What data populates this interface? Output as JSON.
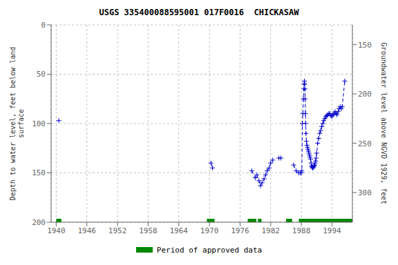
{
  "chart_data": {
    "type": "line",
    "title": "USGS 335400088595001 017F0016  CHICKASAW",
    "y_label": "Depth to water level, feet below land\nsurface",
    "y2_label": "Groundwater level above NGVD 1929, feet",
    "xlim": [
      1939,
      1998
    ],
    "xticks": [
      1940,
      1946,
      1952,
      1958,
      1964,
      1970,
      1976,
      1982,
      1988,
      1994
    ],
    "ylim": [
      200,
      0
    ],
    "yticks": [
      0,
      50,
      100,
      150,
      200
    ],
    "y2lim": [
      330,
      130
    ],
    "y2ticks": [
      150,
      200,
      250,
      300
    ],
    "grid": true,
    "legend": "bottom",
    "series": [
      {
        "color": "#0000cc",
        "line_style": "dashed",
        "marker": "plus",
        "segments": [
          {
            "x": [
              1940.5
            ],
            "values": [
              97
            ]
          },
          {
            "x": [
              1970.3,
              1970.6
            ],
            "values": [
              140,
              145
            ]
          },
          {
            "x": [
              1978.3,
              1979.0,
              1979.3,
              1979.7,
              1980.0,
              1980.3,
              1980.7,
              1981.0,
              1981.3,
              1981.7,
              1982.0,
              1982.4
            ],
            "values": [
              148,
              155,
              152,
              158,
              163,
              160,
              156,
              152,
              148,
              145,
              140,
              137
            ]
          },
          {
            "x": [
              1983.6,
              1984.0
            ],
            "values": [
              135,
              135
            ]
          },
          {
            "x": [
              1986.5,
              1987.0,
              1987.5
            ],
            "values": [
              142,
              148,
              150
            ]
          },
          {
            "x": [
              1987.8,
              1988.0,
              1988.1,
              1988.2,
              1988.3,
              1988.4,
              1988.5,
              1988.55,
              1988.6,
              1988.65,
              1988.7,
              1988.75,
              1988.8,
              1988.85,
              1988.9,
              1989.0,
              1989.1,
              1989.2,
              1989.3,
              1989.4,
              1989.5,
              1989.6,
              1989.7,
              1989.8,
              1989.9,
              1990.0,
              1990.1,
              1990.2,
              1990.3,
              1990.4,
              1990.5,
              1990.6,
              1990.7,
              1990.8,
              1990.9,
              1991.0,
              1991.2,
              1991.4,
              1991.6,
              1991.8,
              1992.0,
              1992.2,
              1992.4,
              1992.6,
              1992.8,
              1993.0,
              1993.2,
              1993.4,
              1993.6,
              1993.8,
              1994.0,
              1994.2,
              1994.4,
              1994.6,
              1994.8,
              1995.0,
              1995.2,
              1995.4,
              1995.6,
              1995.8,
              1996.0,
              1996.5
            ],
            "values": [
              150,
              150,
              148,
              100,
              90,
              75,
              65,
              60,
              57,
              60,
              65,
              75,
              90,
              100,
              110,
              118,
              122,
              124,
              126,
              128,
              130,
              132,
              134,
              136,
              140,
              143,
              144,
              145,
              145,
              144,
              143,
              142,
              140,
              138,
              135,
              130,
              120,
              115,
              110,
              107,
              103,
              100,
              97,
              95,
              93,
              92,
              91,
              90,
              90,
              92,
              93,
              91,
              90,
              88,
              90,
              91,
              88,
              85,
              83,
              85,
              83,
              57
            ]
          }
        ]
      }
    ],
    "approved_periods": {
      "name": "Period of approved data",
      "color": "#008800",
      "periods": [
        [
          1940.0,
          1941.0
        ],
        [
          1969.5,
          1971.0
        ],
        [
          1977.5,
          1979.2
        ],
        [
          1979.5,
          1980.2
        ],
        [
          1985.0,
          1986.2
        ],
        [
          1987.5,
          1998.0
        ]
      ]
    }
  }
}
